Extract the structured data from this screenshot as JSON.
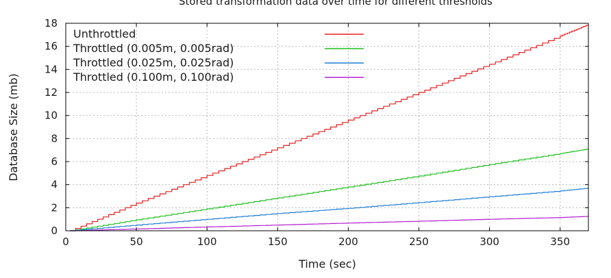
{
  "chart_data": {
    "type": "line",
    "title": "Stored transformation data over time for different thresholds",
    "xlabel": "Time (sec)",
    "ylabel": "Database Size (mb)",
    "xlim": [
      0,
      370
    ],
    "ylim": [
      0,
      18
    ],
    "xticks": [
      0,
      50,
      100,
      150,
      200,
      250,
      300,
      350
    ],
    "yticks": [
      0,
      2,
      4,
      6,
      8,
      10,
      12,
      14,
      16,
      18
    ],
    "grid": true,
    "legend_position": "top-left",
    "series": [
      {
        "name": "Unthrottled",
        "color": "#e82020",
        "x": [
          3,
          50,
          100,
          150,
          200,
          250,
          300,
          350,
          370
        ],
        "y": [
          0,
          2.4,
          4.8,
          7.2,
          9.6,
          12.0,
          14.45,
          16.9,
          17.9
        ]
      },
      {
        "name": "Throttled (0.005m, 0.005rad)",
        "color": "#1fbf1f",
        "x": [
          3,
          50,
          100,
          150,
          200,
          250,
          300,
          350,
          370
        ],
        "y": [
          0,
          0.95,
          1.9,
          2.85,
          3.8,
          4.75,
          5.75,
          6.7,
          7.1
        ]
      },
      {
        "name": "Throttled (0.025m, 0.025rad)",
        "color": "#1e7fd8",
        "x": [
          3,
          50,
          100,
          150,
          200,
          250,
          300,
          350,
          370
        ],
        "y": [
          0,
          0.5,
          1.0,
          1.5,
          1.95,
          2.45,
          2.95,
          3.45,
          3.7
        ]
      },
      {
        "name": "Throttled (0.100m, 0.100rad)",
        "color": "#b31fd1",
        "x": [
          3,
          50,
          100,
          150,
          200,
          250,
          300,
          350,
          370
        ],
        "y": [
          0,
          0.16,
          0.33,
          0.5,
          0.67,
          0.83,
          1.0,
          1.15,
          1.25
        ]
      }
    ]
  }
}
